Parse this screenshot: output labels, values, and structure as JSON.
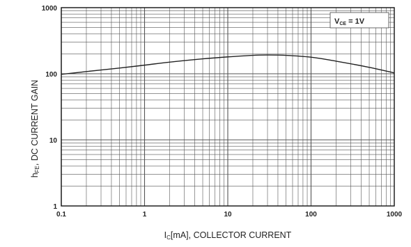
{
  "chart_data": {
    "type": "line",
    "xscale": "log",
    "yscale": "log",
    "xlim": [
      0.1,
      1000
    ],
    "ylim": [
      1,
      1000
    ],
    "grid": true,
    "xlabel": {
      "main": "I",
      "sub": "C",
      "rest": "[mA], COLLECTOR CURRENT"
    },
    "ylabel": {
      "main": "h",
      "sub": "FE",
      "rest": ", DC CURRENT GAIN"
    },
    "x_ticks": [
      {
        "value": 0.1,
        "label": "0.1"
      },
      {
        "value": 1,
        "label": "1"
      },
      {
        "value": 10,
        "label": "10"
      },
      {
        "value": 100,
        "label": "100"
      },
      {
        "value": 1000,
        "label": "1000"
      }
    ],
    "y_ticks": [
      {
        "value": 1,
        "label": "1"
      },
      {
        "value": 10,
        "label": "10"
      },
      {
        "value": 100,
        "label": "100"
      },
      {
        "value": 1000,
        "label": "1000"
      }
    ],
    "legend": {
      "main": "V",
      "sub": "CE",
      "rest": " = 1V",
      "placement": "top-right"
    },
    "series": [
      {
        "x": [
          0.1,
          0.2,
          0.5,
          1,
          2,
          5,
          10,
          20,
          30,
          50,
          100,
          200,
          500,
          1000
        ],
        "y": [
          98,
          108,
          122,
          135,
          150,
          168,
          180,
          190,
          192,
          190,
          178,
          155,
          125,
          103
        ]
      }
    ],
    "colors": {
      "line": "#222222",
      "grid": "#555555",
      "frame": "#111111"
    }
  }
}
